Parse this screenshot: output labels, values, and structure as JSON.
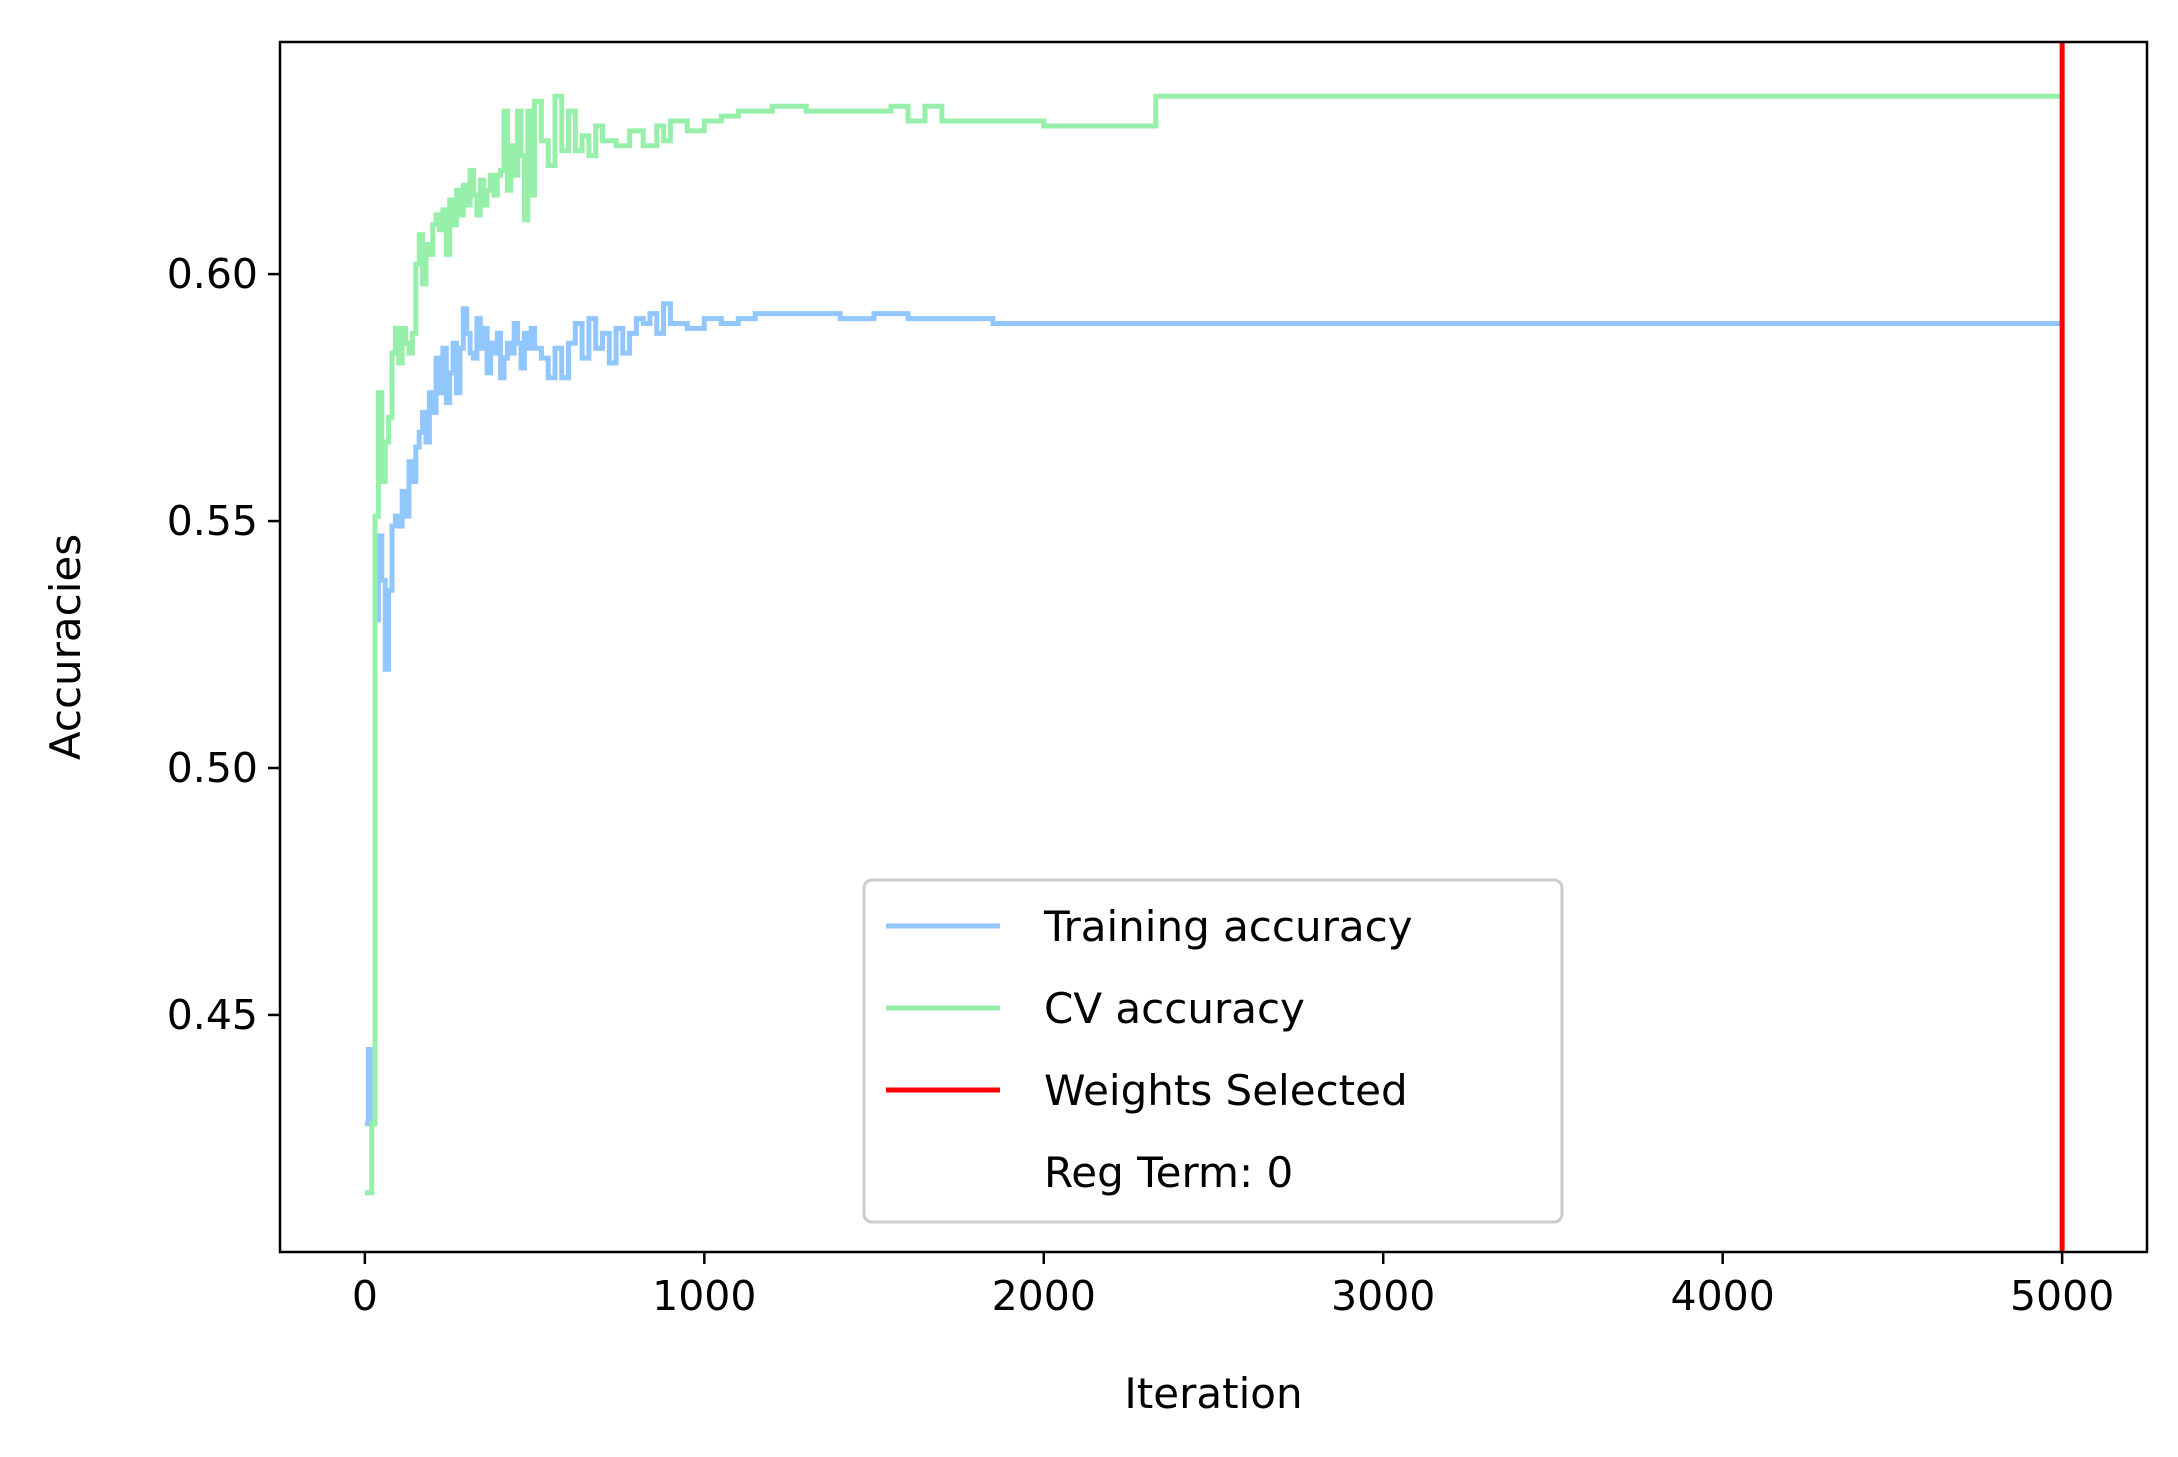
{
  "chart_data": {
    "type": "line",
    "title": "",
    "xlabel": "Iteration",
    "ylabel": "Accuracies",
    "xlim": [
      -250,
      5250
    ],
    "ylim": [
      0.402,
      0.647
    ],
    "x_ticks": [
      0,
      1000,
      2000,
      3000,
      4000,
      5000
    ],
    "x_tick_labels": [
      "0",
      "1000",
      "2000",
      "3000",
      "4000",
      "5000"
    ],
    "y_ticks": [
      0.45,
      0.5,
      0.55,
      0.6
    ],
    "y_tick_labels": [
      "0.45",
      "0.50",
      "0.55",
      "0.60"
    ],
    "grid": false,
    "legend_position": "lower-center",
    "colors": {
      "training": "#92c6ff",
      "cv": "#97f0aa",
      "selected": "#ff0000"
    },
    "series": [
      {
        "name": "Training accuracy",
        "style": "step",
        "x": [
          0,
          10,
          20,
          30,
          40,
          50,
          60,
          70,
          80,
          90,
          100,
          110,
          120,
          130,
          140,
          150,
          160,
          170,
          180,
          190,
          200,
          210,
          220,
          230,
          240,
          250,
          260,
          270,
          280,
          290,
          300,
          310,
          320,
          330,
          340,
          350,
          360,
          370,
          380,
          390,
          400,
          410,
          420,
          430,
          440,
          450,
          460,
          470,
          480,
          490,
          500,
          520,
          540,
          560,
          580,
          600,
          620,
          640,
          660,
          680,
          700,
          720,
          740,
          760,
          780,
          800,
          820,
          840,
          860,
          880,
          900,
          950,
          1000,
          1050,
          1100,
          1150,
          1200,
          1300,
          1400,
          1500,
          1550,
          1600,
          1650,
          1700,
          1800,
          1850,
          1900,
          1950,
          2000,
          5000
        ],
        "values": [
          0.428,
          0.443,
          0.429,
          0.53,
          0.547,
          0.538,
          0.52,
          0.536,
          0.549,
          0.551,
          0.549,
          0.556,
          0.551,
          0.562,
          0.558,
          0.565,
          0.568,
          0.572,
          0.566,
          0.576,
          0.572,
          0.583,
          0.576,
          0.585,
          0.574,
          0.58,
          0.586,
          0.576,
          0.585,
          0.593,
          0.588,
          0.584,
          0.583,
          0.591,
          0.585,
          0.589,
          0.58,
          0.586,
          0.584,
          0.588,
          0.579,
          0.583,
          0.586,
          0.584,
          0.59,
          0.586,
          0.581,
          0.588,
          0.585,
          0.589,
          0.585,
          0.583,
          0.579,
          0.585,
          0.579,
          0.586,
          0.59,
          0.583,
          0.591,
          0.585,
          0.588,
          0.582,
          0.589,
          0.584,
          0.588,
          0.591,
          0.59,
          0.592,
          0.588,
          0.594,
          0.59,
          0.589,
          0.591,
          0.59,
          0.591,
          0.592,
          0.592,
          0.592,
          0.591,
          0.592,
          0.592,
          0.591,
          0.591,
          0.591,
          0.591,
          0.59,
          0.59,
          0.59,
          0.59,
          0.59
        ]
      },
      {
        "name": "CV accuracy",
        "style": "step",
        "x": [
          0,
          10,
          20,
          30,
          40,
          50,
          60,
          70,
          80,
          90,
          100,
          110,
          120,
          130,
          140,
          150,
          160,
          170,
          180,
          190,
          200,
          210,
          220,
          230,
          240,
          250,
          260,
          270,
          280,
          290,
          300,
          310,
          320,
          330,
          340,
          350,
          360,
          370,
          380,
          390,
          400,
          410,
          420,
          430,
          440,
          450,
          460,
          470,
          480,
          490,
          500,
          520,
          540,
          560,
          580,
          600,
          620,
          640,
          660,
          680,
          700,
          740,
          780,
          820,
          860,
          880,
          900,
          950,
          1000,
          1050,
          1100,
          1150,
          1200,
          1300,
          1400,
          1500,
          1550,
          1600,
          1650,
          1700,
          1800,
          2000,
          2200,
          2300,
          2330,
          5000
        ],
        "values": [
          0.414,
          0.414,
          0.428,
          0.551,
          0.576,
          0.558,
          0.566,
          0.571,
          0.584,
          0.589,
          0.582,
          0.589,
          0.586,
          0.584,
          0.588,
          0.602,
          0.608,
          0.598,
          0.606,
          0.604,
          0.61,
          0.612,
          0.609,
          0.613,
          0.604,
          0.615,
          0.61,
          0.617,
          0.612,
          0.618,
          0.614,
          0.621,
          0.616,
          0.612,
          0.619,
          0.614,
          0.617,
          0.62,
          0.616,
          0.62,
          0.621,
          0.633,
          0.617,
          0.626,
          0.62,
          0.633,
          0.624,
          0.611,
          0.633,
          0.616,
          0.635,
          0.627,
          0.622,
          0.636,
          0.625,
          0.633,
          0.625,
          0.628,
          0.624,
          0.63,
          0.627,
          0.626,
          0.629,
          0.626,
          0.63,
          0.627,
          0.631,
          0.629,
          0.631,
          0.632,
          0.633,
          0.633,
          0.634,
          0.633,
          0.633,
          0.633,
          0.634,
          0.631,
          0.634,
          0.631,
          0.631,
          0.63,
          0.63,
          0.63,
          0.636,
          0.636
        ]
      }
    ],
    "vertical_line": {
      "name": "Weights Selected",
      "x": 5000
    },
    "legend_entries": [
      {
        "label": "Training accuracy",
        "color": "#92c6ff"
      },
      {
        "label": "CV accuracy",
        "color": "#97f0aa"
      },
      {
        "label": "Weights Selected",
        "color": "#ff0000"
      },
      {
        "label": "Reg Term: 0",
        "color": ""
      }
    ]
  }
}
